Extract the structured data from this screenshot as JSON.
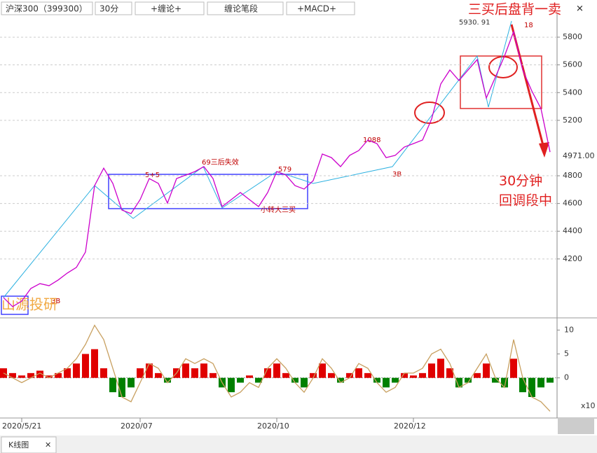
{
  "toolbar": {
    "symbol": "沪深300（399300）",
    "period": "30分",
    "buttons": [
      "+缠论+",
      "缠论笔段",
      "+MACD+"
    ]
  },
  "annotations": {
    "headline": "三买后盘背一卖",
    "peak": "5930. 91",
    "peak_count": "18",
    "note_line1": "30分钟",
    "note_line2": "回调段中",
    "a1": "69三后失效",
    "a2": "5+5",
    "a3": "579",
    "a4": "小转大三买",
    "a5": "1088",
    "a6": "3B",
    "a7": "3B",
    "watermark": "山源投研"
  },
  "chart_data": [
    {
      "type": "line",
      "color": "#cc00cc",
      "last_label": "4971.00",
      "last_color": "#00a000",
      "values": [
        3921,
        3856,
        3896,
        3987,
        4022,
        4007,
        4048,
        4098,
        4139,
        4250,
        4729,
        4855,
        4745,
        4553,
        4527,
        4628,
        4780,
        4745,
        4603,
        4780,
        4805,
        4830,
        4866,
        4780,
        4578,
        4628,
        4679,
        4628,
        4578,
        4679,
        4830,
        4805,
        4729,
        4704,
        4765,
        4957,
        4931,
        4866,
        4947,
        4982,
        5058,
        5032,
        4931,
        4947,
        5007,
        5032,
        5058,
        5209,
        5462,
        5563,
        5487,
        5563,
        5638,
        5361,
        5512,
        5664,
        5840,
        5563,
        5411,
        5285,
        4971
      ],
      "ylim": [
        3785,
        5967
      ],
      "yticks": [
        4200,
        4400,
        4600,
        4800,
        5200,
        5400,
        5600,
        5800
      ],
      "grid": true
    },
    {
      "type": "bar",
      "up_color": "#e00000",
      "down_color": "#008000",
      "categories": [
        null,
        null,
        "2020/5/21",
        null,
        null,
        null,
        null,
        null,
        null,
        null,
        null,
        null,
        null,
        null,
        null,
        "2020/07",
        null,
        null,
        null,
        null,
        null,
        null,
        null,
        null,
        null,
        null,
        null,
        null,
        null,
        null,
        "2020/10",
        null,
        null,
        null,
        null,
        null,
        null,
        null,
        null,
        null,
        null,
        null,
        null,
        null,
        null,
        "2020/12",
        null,
        null,
        null,
        null,
        null,
        null,
        null,
        null,
        null,
        null,
        null,
        null,
        null,
        null,
        null
      ],
      "values": [
        2,
        1,
        0.5,
        1,
        1.5,
        0.5,
        1,
        2,
        3,
        5,
        6,
        2,
        -3,
        -4,
        -2,
        2,
        3,
        1,
        -1,
        2,
        3,
        2,
        3,
        1,
        -2,
        -3,
        -1,
        0.5,
        -1,
        2,
        3,
        1,
        -1,
        -2,
        1,
        3,
        1,
        -1,
        1,
        2,
        1,
        -1,
        -2,
        -1,
        1,
        0.5,
        1,
        3,
        4,
        2,
        -2,
        -1,
        1,
        3,
        -1,
        -2,
        4,
        -3,
        -4,
        -2,
        -1
      ],
      "line": {
        "color": "#c8a060",
        "values": [
          1,
          0,
          -1,
          0,
          1,
          0,
          1,
          2,
          4,
          7,
          11,
          8,
          2,
          -4,
          -5,
          -1,
          3,
          2,
          -1,
          1,
          4,
          3,
          4,
          3,
          -1,
          -4,
          -3,
          -1,
          -2,
          2,
          4,
          2,
          -1,
          -3,
          0,
          4,
          2,
          -1,
          0,
          3,
          2,
          -1,
          -3,
          -2,
          1,
          1,
          2,
          5,
          6,
          3,
          -2,
          -1,
          2,
          5,
          0,
          -2,
          8,
          0,
          -4,
          -5,
          -7
        ]
      },
      "ylim": [
        -8.1,
        12.4
      ],
      "yticks": [
        0,
        5,
        10
      ],
      "scale_label": "x10"
    }
  ],
  "tab": "K线图"
}
